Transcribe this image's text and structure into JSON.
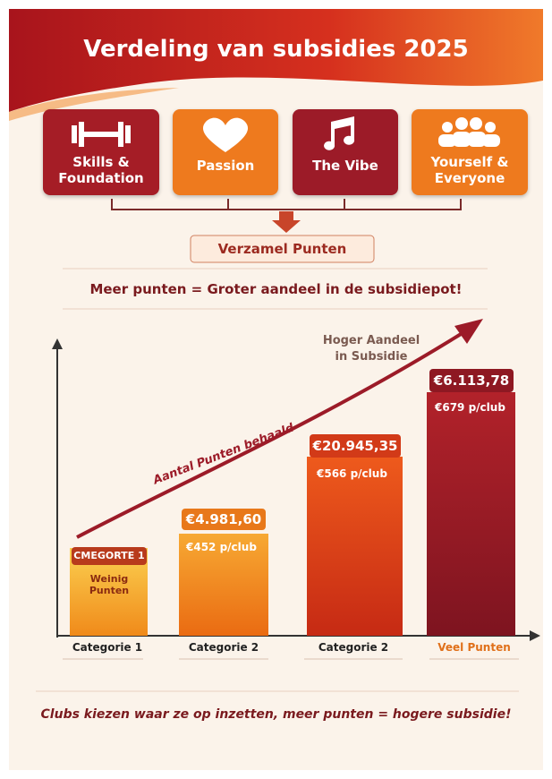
{
  "title": "Verdeling van subsidies 2025",
  "pillars": [
    "Skills & Foundation",
    "Passion",
    "The Vibe",
    "Yourself & Everyone"
  ],
  "collect": "Verzamel Punten",
  "tagline": "Meer punten = Groter aandeel in de subsidiepot!",
  "arrow_labels": {
    "points": "Aantal Punten behaald",
    "share": "Hoger Aandeel in Subsidie"
  },
  "bars": [
    {
      "badge": "CMEGORTE 1",
      "note": "Weinig Punten",
      "label": "Categorie 1"
    },
    {
      "amount": "€4.981,60",
      "per_club": "€452 p/club",
      "label": "Categorie 2"
    },
    {
      "amount": "€20.945,35",
      "per_club": "€566 p/club",
      "label": "Categorie 2"
    },
    {
      "amount": "€6.113,78",
      "per_club": "€679 p/club",
      "label": "Veel Punten"
    }
  ],
  "footer": "Clubs kiezen waar ze op inzetten, meer punten = hogere subsidie!"
}
